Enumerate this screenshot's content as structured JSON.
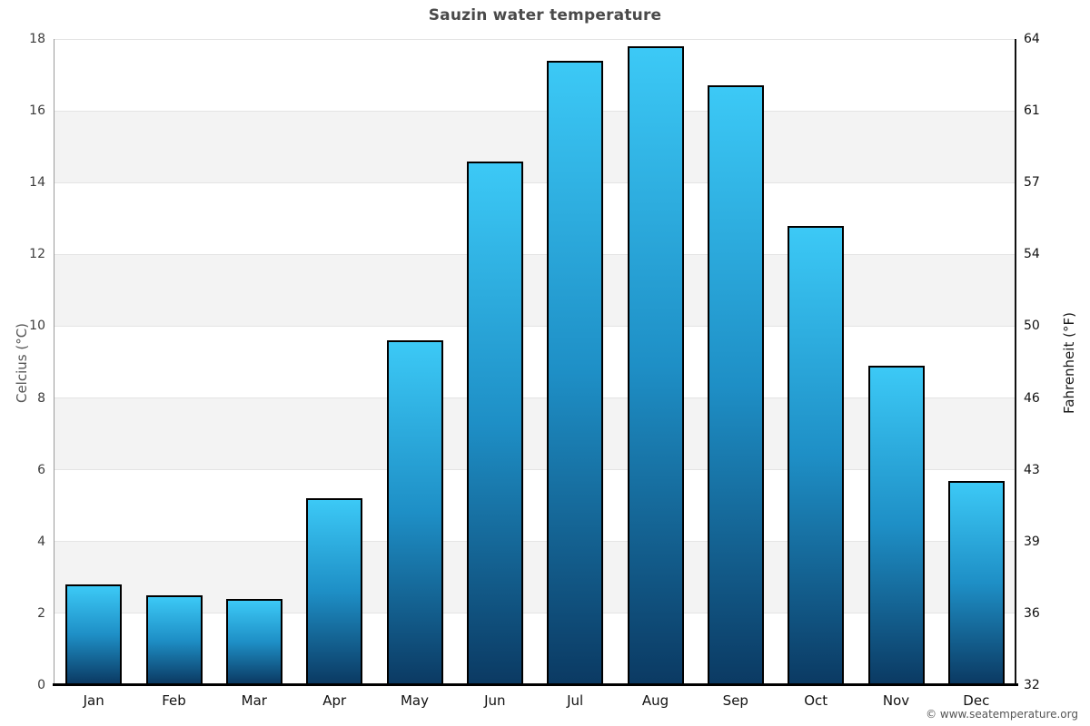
{
  "title": "Sauzin water temperature",
  "watermark": "© www.seatemperature.org",
  "chart_data": {
    "type": "bar",
    "title": "Sauzin water temperature",
    "categories": [
      "Jan",
      "Feb",
      "Mar",
      "Apr",
      "May",
      "Jun",
      "Jul",
      "Aug",
      "Sep",
      "Oct",
      "Nov",
      "Dec"
    ],
    "values": [
      2.8,
      2.5,
      2.4,
      5.2,
      9.6,
      14.6,
      17.4,
      17.8,
      16.7,
      12.8,
      8.9,
      5.7
    ],
    "unit": "°C",
    "ylabel_left": "Celcius (°C)",
    "ylabel_right": "Fahrenheit (°F)",
    "ylim": [
      0,
      18
    ],
    "celsius_ticks": [
      0,
      2,
      4,
      6,
      8,
      10,
      12,
      14,
      16,
      18
    ],
    "fahrenheit_ticks": [
      32,
      36,
      39,
      43,
      46,
      50,
      54,
      57,
      61,
      64
    ],
    "shaded_bands_celsius": [
      [
        2,
        4
      ],
      [
        6,
        8
      ],
      [
        10,
        12
      ],
      [
        14,
        16
      ]
    ],
    "legend": "none",
    "grid": "horizontal",
    "colors": {
      "bar_gradient_top": "#3cc9f6",
      "bar_gradient_mid": "#1e8fc6",
      "bar_gradient_bottom": "#0b3a63",
      "bar_border": "#000000",
      "band_fill": "#f3f3f3",
      "gridline": "#e4e4e4",
      "title_text": "#4a4a4a",
      "left_axis_line": "#9a9a9a",
      "right_axis_line": "#111111",
      "bottom_axis_line": "#000000",
      "watermark_text": "#555555"
    }
  }
}
